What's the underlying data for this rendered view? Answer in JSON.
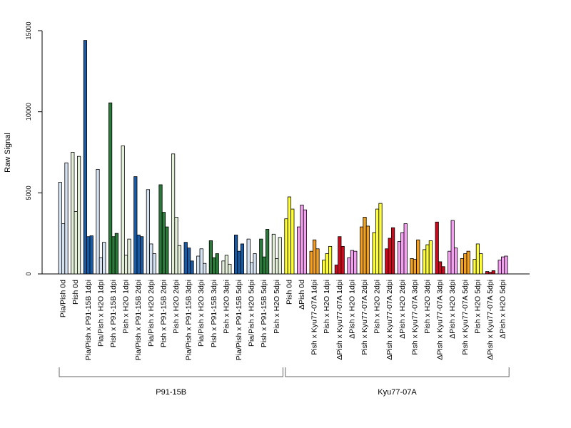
{
  "chart_data": {
    "type": "bar",
    "title": "",
    "xlabel": "",
    "ylabel": "Raw Signal",
    "ylim": [
      0,
      15000
    ],
    "yticks": [
      0,
      5000,
      10000,
      15000
    ],
    "grid": false,
    "groups": [
      {
        "label": "Pia/Pish 0d",
        "color": "#d4e2f2",
        "values": [
          5650,
          3100,
          6850
        ]
      },
      {
        "label": "Pish 0d",
        "color": "#e3efd9",
        "values": [
          7500,
          3850,
          7250
        ]
      },
      {
        "label": "Pia/Pish x P91-15B 1dpi",
        "color": "#1a5aa4",
        "values": [
          14400,
          2300,
          2350
        ]
      },
      {
        "label": "Pia/Pish x H2O 1dpi",
        "color": "#d4e2f2",
        "values": [
          6450,
          1000,
          1950
        ]
      },
      {
        "label": "Pish x P91-15B 1dpi",
        "color": "#2a7a3a",
        "values": [
          10550,
          2300,
          2500
        ]
      },
      {
        "label": "Pish x H2O 1dpi",
        "color": "#e3efd9",
        "values": [
          7900,
          1150,
          2150
        ]
      },
      {
        "label": "Pia/Pish x P91-15B 2dpi",
        "color": "#1a5aa4",
        "values": [
          6000,
          2400,
          2300
        ]
      },
      {
        "label": "Pia/Pish x H2O 2dpi",
        "color": "#d4e2f2",
        "values": [
          5200,
          1850,
          1250
        ]
      },
      {
        "label": "Pish x P91-15B 2dpi",
        "color": "#2a7a3a",
        "values": [
          5500,
          3800,
          2900
        ]
      },
      {
        "label": "Pish x H2O 2dpi",
        "color": "#e3efd9",
        "values": [
          7400,
          3500,
          1750
        ]
      },
      {
        "label": "Pia/Pish x P91-15B 3dpi",
        "color": "#1a5aa4",
        "values": [
          1950,
          1600,
          800
        ]
      },
      {
        "label": "Pia/Pish x H2O 3dpi",
        "color": "#d4e2f2",
        "values": [
          1100,
          1550,
          650
        ]
      },
      {
        "label": "Pish x P91-15B 3dpi",
        "color": "#2a7a3a",
        "values": [
          2050,
          1000,
          1250
        ]
      },
      {
        "label": "Pish x H2O 3dpi",
        "color": "#e3efd9",
        "values": [
          800,
          1150,
          600
        ]
      },
      {
        "label": "Pia/Pish x P91-15B 5dpi",
        "color": "#1a5aa4",
        "values": [
          2400,
          1400,
          1850
        ]
      },
      {
        "label": "Pia/Pish x H2O 5dpi",
        "color": "#d4e2f2",
        "values": [
          2150,
          700,
          1250
        ]
      },
      {
        "label": "Pish x P91-15B 5dpi",
        "color": "#2a7a3a",
        "values": [
          2150,
          1050,
          2750
        ]
      },
      {
        "label": "Pish x H2O 5dpi",
        "color": "#e3efd9",
        "values": [
          2450,
          950,
          2250
        ]
      },
      {
        "label": "Pish 0d",
        "color": "#ffff33",
        "values": [
          3400,
          4750,
          4000
        ]
      },
      {
        "label": "ΔPish 0d",
        "color": "#f4a0f0",
        "values": [
          2900,
          4250,
          3950
        ]
      },
      {
        "label": "Pish x Kyu77-07A 1dpi",
        "color": "#f2a01e",
        "values": [
          1400,
          2100,
          1550
        ]
      },
      {
        "label": "Pish x H2O 1dpi",
        "color": "#ffff33",
        "values": [
          850,
          1250,
          1700
        ]
      },
      {
        "label": "ΔPish x Kyu77-07A 1dpi",
        "color": "#cc0a1e",
        "values": [
          550,
          2300,
          1700
        ]
      },
      {
        "label": "ΔPish x H2O 1dpi",
        "color": "#f4a0f0",
        "values": [
          1000,
          1450,
          1400
        ]
      },
      {
        "label": "Pish x Kyu77-07A 2dpi",
        "color": "#f2a01e",
        "values": [
          2900,
          3500,
          2950
        ]
      },
      {
        "label": "Pish x H2O 2dpi",
        "color": "#ffff33",
        "values": [
          2550,
          4000,
          4350
        ]
      },
      {
        "label": "ΔPish x Kyu77-07A 2dpi",
        "color": "#cc0a1e",
        "values": [
          1550,
          2200,
          2850
        ]
      },
      {
        "label": "ΔPish x H2O 2dpi",
        "color": "#f4a0f0",
        "values": [
          2000,
          2550,
          3100
        ]
      },
      {
        "label": "Pish x Kyu77-07A 3dpi",
        "color": "#f2a01e",
        "values": [
          950,
          900,
          2100
        ]
      },
      {
        "label": "Pish x H2O 3dpi",
        "color": "#ffff33",
        "values": [
          1500,
          1800,
          2050
        ]
      },
      {
        "label": "ΔPish x Kyu77-07A 3dpi",
        "color": "#cc0a1e",
        "values": [
          3200,
          750,
          450
        ]
      },
      {
        "label": "ΔPish x H2O 3dpi",
        "color": "#f4a0f0",
        "values": [
          1400,
          3300,
          1600
        ]
      },
      {
        "label": "Pish x Kyu77-07A 5dpi",
        "color": "#f2a01e",
        "values": [
          950,
          1250,
          1400
        ]
      },
      {
        "label": "Pish x H2O 5dpi",
        "color": "#ffff33",
        "values": [
          900,
          1850,
          1250
        ]
      },
      {
        "label": "ΔPish x Kyu77-07A 5dpi",
        "color": "#cc0a1e",
        "values": [
          150,
          100,
          200
        ]
      },
      {
        "label": "ΔPish x H2O 5dpi",
        "color": "#f4a0f0",
        "values": [
          850,
          1050,
          1100
        ]
      }
    ],
    "visible_labels": [
      "Pia/Pish 0d",
      "Pish 0d",
      "Pia/Pish x P91-15B 1dpi",
      "Pia/Pish x H2O 1dpi",
      "Pish x P91-15B 1dpi",
      "Pish x H2O 1dpi",
      "Pia/Pish x P91-15B 2dpi",
      "Pia/Pish x H2O 2dpi",
      "Pish x P91-15B 2dpi",
      "Pish x H2O 2dpi",
      "Pia/Pish x P91-15B 3dpi",
      "Pia/Pish x H2O 3dpi",
      "Pish x P91-15B 3dpi",
      "Pish x H2O 3dpi",
      "Pia/Pish x P91-15B 5dpi",
      "Pia/Pish x H2O 5dpi",
      "Pish x P91-15B 5dpi",
      "Pish x H2O 5dpi",
      "Pish 0d",
      "ΔPish 0d",
      "Pish x Kyu77-07A 1dpi",
      "Pish x H2O 1dpi",
      "ΔPish x Kyu77-07A 1dpi",
      "ΔPish x H2O 1dpi",
      "Pish x Kyu77-07A 2dpi",
      "Pish x H2O 2dpi",
      "ΔPish x Kyu77-07A 2dpi",
      "ΔPish x H2O 2dpi",
      "Pish x Kyu77-07A 3dpi",
      "Pish x H2O 3dpi",
      "ΔPish x Kyu77-07A 3dpi",
      "ΔPish x H2O 3dpi",
      "Pish x Kyu77-07A 5dpi",
      "Pish x H2O 5dpi",
      "ΔPish x Kyu77-07A 5dpi",
      "ΔPish x H2O 5dpi"
    ],
    "experiments": [
      {
        "label": "P91-15B",
        "first_group": 0,
        "last_group": 17
      },
      {
        "label": "Kyu77-07A",
        "first_group": 18,
        "last_group": 35
      }
    ]
  }
}
